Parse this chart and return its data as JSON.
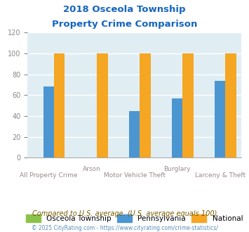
{
  "title_line1": "2018 Osceola Township",
  "title_line2": "Property Crime Comparison",
  "title_color": "#1565C0",
  "group_labels_top": [
    "",
    "Arson",
    "",
    "Burglary",
    ""
  ],
  "group_labels_bottom": [
    "All Property Crime",
    "",
    "Motor Vehicle Theft",
    "",
    "Larceny & Theft"
  ],
  "series": {
    "Osceola Township": [
      0,
      0,
      0,
      0,
      0
    ],
    "Pennsylvania": [
      68,
      0,
      45,
      57,
      74
    ],
    "National": [
      100,
      100,
      100,
      100,
      100
    ]
  },
  "n_groups": 5,
  "colors": {
    "Osceola Township": "#8BC34A",
    "Pennsylvania": "#4B96D1",
    "National": "#F5A623"
  },
  "ylim": [
    0,
    120
  ],
  "yticks": [
    0,
    20,
    40,
    60,
    80,
    100,
    120
  ],
  "background_color": "#E0EEF4",
  "grid_color": "#FFFFFF",
  "legend_labels": [
    "Osceola Township",
    "Pennsylvania",
    "National"
  ],
  "footnote1": "Compared to U.S. average. (U.S. average equals 100)",
  "footnote2": "© 2025 CityRating.com - https://www.cityrating.com/crime-statistics/",
  "footnote1_color": "#7A5C00",
  "footnote2_color": "#5B8DB8",
  "label_top_color": "#9B8888",
  "label_bottom_color": "#9B8888"
}
